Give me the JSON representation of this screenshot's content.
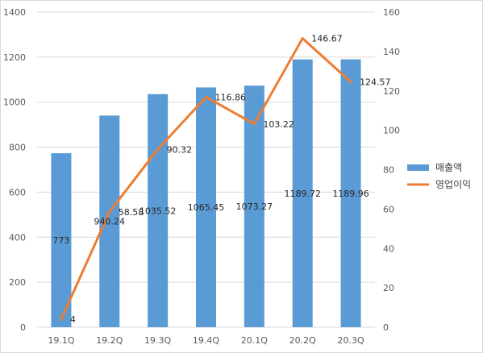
{
  "chart_data": {
    "type": "bar",
    "categories": [
      "19.1Q",
      "19.2Q",
      "19.3Q",
      "19.4Q",
      "20.1Q",
      "20.2Q",
      "20.3Q"
    ],
    "series": [
      {
        "name": "매출액",
        "type": "bar",
        "axis": "left",
        "color": "#5b9bd5",
        "values": [
          773,
          940.24,
          1035.52,
          1065.45,
          1073.27,
          1189.72,
          1189.96
        ],
        "labels": [
          "773",
          "940.24",
          "1035.52",
          "1065.45",
          "1073.27",
          "1189.72",
          "1189.96"
        ]
      },
      {
        "name": "영업이익",
        "type": "line",
        "axis": "right",
        "color": "#ed7d31",
        "values": [
          4,
          58.58,
          90.32,
          116.86,
          103.22,
          146.67,
          124.57
        ],
        "labels": [
          "4",
          "58.58",
          "90.32",
          "116.86",
          "103.22",
          "146.67",
          "124.57"
        ]
      }
    ],
    "y_left": {
      "min": 0,
      "max": 1400,
      "ticks": [
        "0",
        "200",
        "400",
        "600",
        "800",
        "1000",
        "1200",
        "1400"
      ]
    },
    "y_right": {
      "min": 0,
      "max": 160,
      "ticks": [
        "0",
        "20",
        "40",
        "60",
        "80",
        "100",
        "120",
        "140",
        "160"
      ]
    },
    "grid": true,
    "legend_position": "right"
  }
}
